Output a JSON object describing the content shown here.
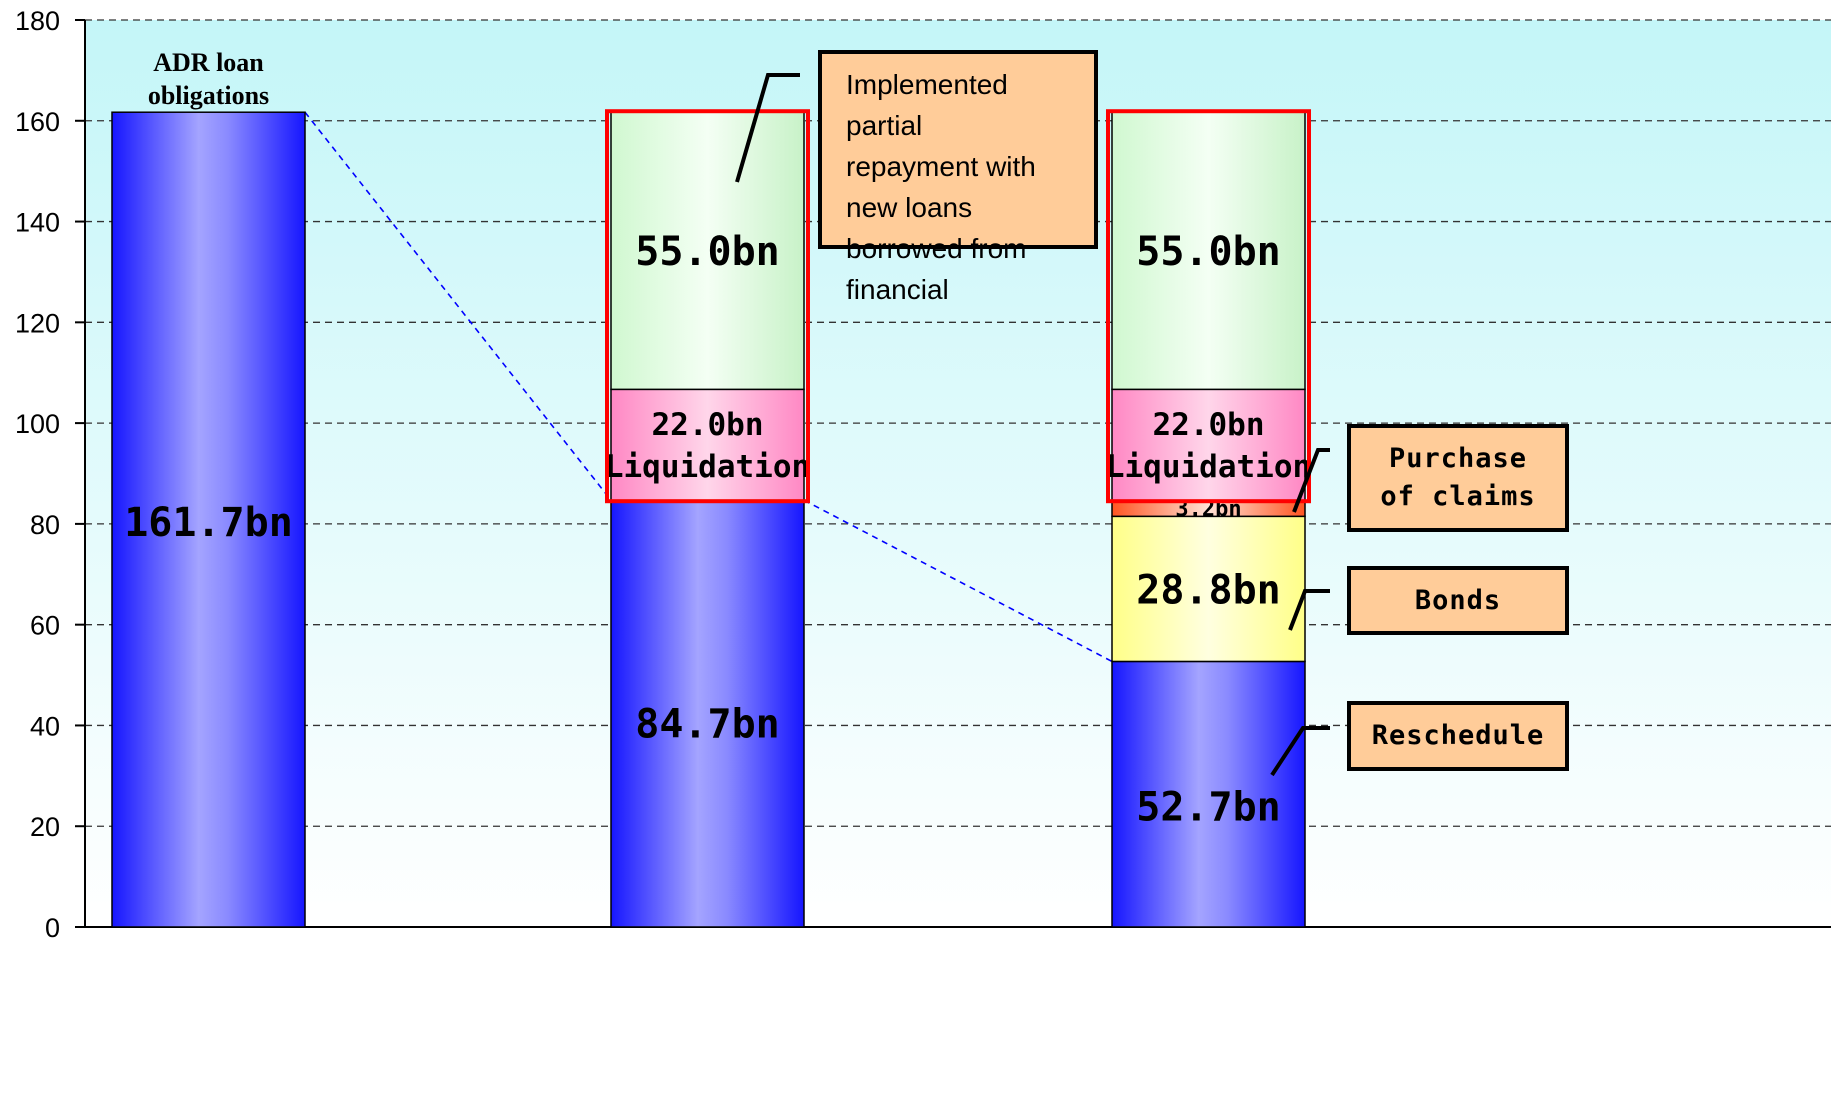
{
  "chart_data": {
    "type": "bar",
    "stacked": true,
    "yticks": [
      "0",
      "20",
      "40",
      "60",
      "80",
      "100",
      "120",
      "140",
      "160",
      "180"
    ],
    "ylim": [
      0,
      180
    ],
    "grid": true,
    "bars": [
      {
        "top_label": [
          "ADR loan",
          "obligations"
        ],
        "segments": [
          {
            "value": 161.7,
            "label": [
              "161.7bn"
            ],
            "color": "blue"
          }
        ]
      },
      {
        "top_label": [],
        "segments": [
          {
            "value": 84.7,
            "label": [
              "84.7bn"
            ],
            "color": "blue"
          },
          {
            "value": 22.0,
            "label": [
              "22.0bn",
              "Liquidation"
            ],
            "color": "pink"
          },
          {
            "value": 55.0,
            "label": [
              "55.0bn"
            ],
            "color": "green"
          }
        ]
      },
      {
        "top_label": [],
        "segments": [
          {
            "value": 52.7,
            "label": [
              "52.7bn"
            ],
            "color": "blue"
          },
          {
            "value": 28.8,
            "label": [
              "28.8bn"
            ],
            "color": "yellow"
          },
          {
            "value": 3.2,
            "label": [
              "3.2bn"
            ],
            "color": "orange"
          },
          {
            "value": 22.0,
            "label": [
              "22.0bn",
              "Liquidation"
            ],
            "color": "pink"
          },
          {
            "value": 55.0,
            "label": [
              "55.0bn"
            ],
            "color": "green"
          }
        ]
      }
    ],
    "highlighted_groups": [
      {
        "bar": 1,
        "from_segment": 1,
        "to_segment": 2
      },
      {
        "bar": 2,
        "from_segment": 3,
        "to_segment": 4
      }
    ],
    "annotations": [
      {
        "id": "note",
        "text": [
          "Implemented partial",
          "repayment with",
          "new loans",
          "borrowed from",
          "financial"
        ]
      },
      {
        "id": "purchase",
        "text": [
          "Purchase",
          "of claims"
        ]
      },
      {
        "id": "bonds",
        "text": [
          "Bonds"
        ]
      },
      {
        "id": "reschedule",
        "text": [
          "Reschedule"
        ]
      }
    ]
  },
  "colors": {
    "plot_bg_top": "#c8f8f8",
    "plot_bg_bottom": "#ffffff",
    "blue_edge": "#1a1aff",
    "blue_center": "#a0a0ff",
    "pink": "#ff99cc",
    "green_top": "#d6f8d6",
    "yellow": "#ffff99",
    "orange": "#ff6633",
    "highlight": "#ff0000",
    "annotation_bg": "#ffcc99",
    "connector": "#0000ff"
  }
}
